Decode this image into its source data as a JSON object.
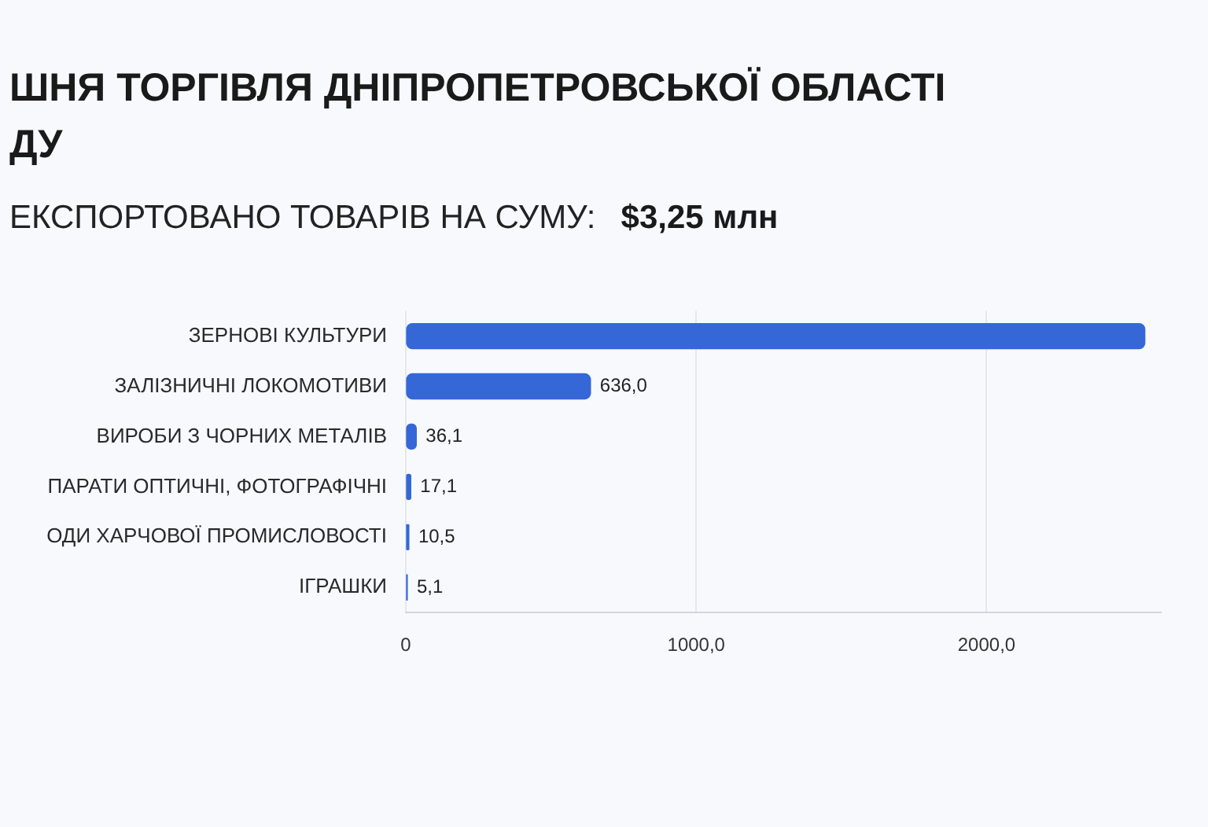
{
  "chart_data": {
    "type": "bar",
    "orientation": "horizontal",
    "title": "ШНЯ ТОРГІВЛЯ ДНІПРОПЕТРОВСЬКОЇ ОБЛАСТІ\nДУ",
    "subtitle": "ЕКСПОРТОВАНО ТОВАРІВ НА СУМУ:",
    "annotations": [
      "$3,25 млн"
    ],
    "categories": [
      "ЗЕРНОВІ КУЛЬТУРИ",
      "ЗАЛІЗНИЧНІ ЛОКОМОТИВИ",
      "ВИРОБИ З ЧОРНИХ МЕТАЛІВ",
      "ПАРАТИ ОПТИЧНІ, ФОТОГРАФІЧНІ",
      "ОДИ ХАРЧОВОЇ ПРОМИСЛОВОСТІ",
      "ІГРАШКИ"
    ],
    "values": [
      2545,
      636.0,
      36.1,
      17.1,
      10.5,
      5.1
    ],
    "value_labels": [
      null,
      "636,0",
      "36,1",
      "17,1",
      "10,5",
      "5,1"
    ],
    "color": "#3567d6",
    "xlim": [
      0,
      2600
    ],
    "xticks": [
      0,
      {
        "value": 1000,
        "label": "1000,0"
      },
      {
        "value": 2000,
        "label": "2000,0"
      }
    ],
    "grid": "x"
  }
}
